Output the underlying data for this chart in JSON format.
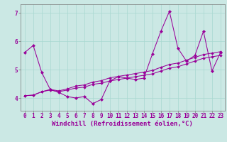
{
  "xlabel": "Windchill (Refroidissement éolien,°C)",
  "bg_color": "#cbe8e4",
  "line_color": "#990099",
  "xlim": [
    -0.5,
    23.5
  ],
  "ylim": [
    3.55,
    7.3
  ],
  "xticks": [
    0,
    1,
    2,
    3,
    4,
    5,
    6,
    7,
    8,
    9,
    10,
    11,
    12,
    13,
    14,
    15,
    16,
    17,
    18,
    19,
    20,
    21,
    22,
    23
  ],
  "yticks": [
    4,
    5,
    6,
    7
  ],
  "series1_y": [
    5.6,
    5.85,
    4.9,
    4.3,
    4.2,
    4.05,
    4.0,
    4.05,
    3.8,
    3.95,
    4.6,
    4.75,
    4.7,
    4.65,
    4.7,
    5.55,
    6.35,
    7.05,
    5.75,
    5.3,
    5.5,
    6.35,
    4.95,
    5.6
  ],
  "series2_y": [
    4.08,
    4.1,
    4.22,
    4.28,
    4.22,
    4.28,
    4.35,
    4.38,
    4.48,
    4.52,
    4.6,
    4.65,
    4.7,
    4.75,
    4.8,
    4.85,
    4.95,
    5.05,
    5.1,
    5.2,
    5.3,
    5.4,
    5.45,
    5.5
  ],
  "series3_y": [
    4.08,
    4.1,
    4.22,
    4.3,
    4.25,
    4.32,
    4.42,
    4.46,
    4.56,
    4.61,
    4.71,
    4.76,
    4.81,
    4.86,
    4.91,
    4.97,
    5.08,
    5.18,
    5.23,
    5.33,
    5.43,
    5.53,
    5.58,
    5.63
  ],
  "tick_fontsize": 5.5,
  "xlabel_fontsize": 6.5,
  "grid_color": "#a8d8d0",
  "marker_size": 2.2,
  "line_width": 0.75
}
